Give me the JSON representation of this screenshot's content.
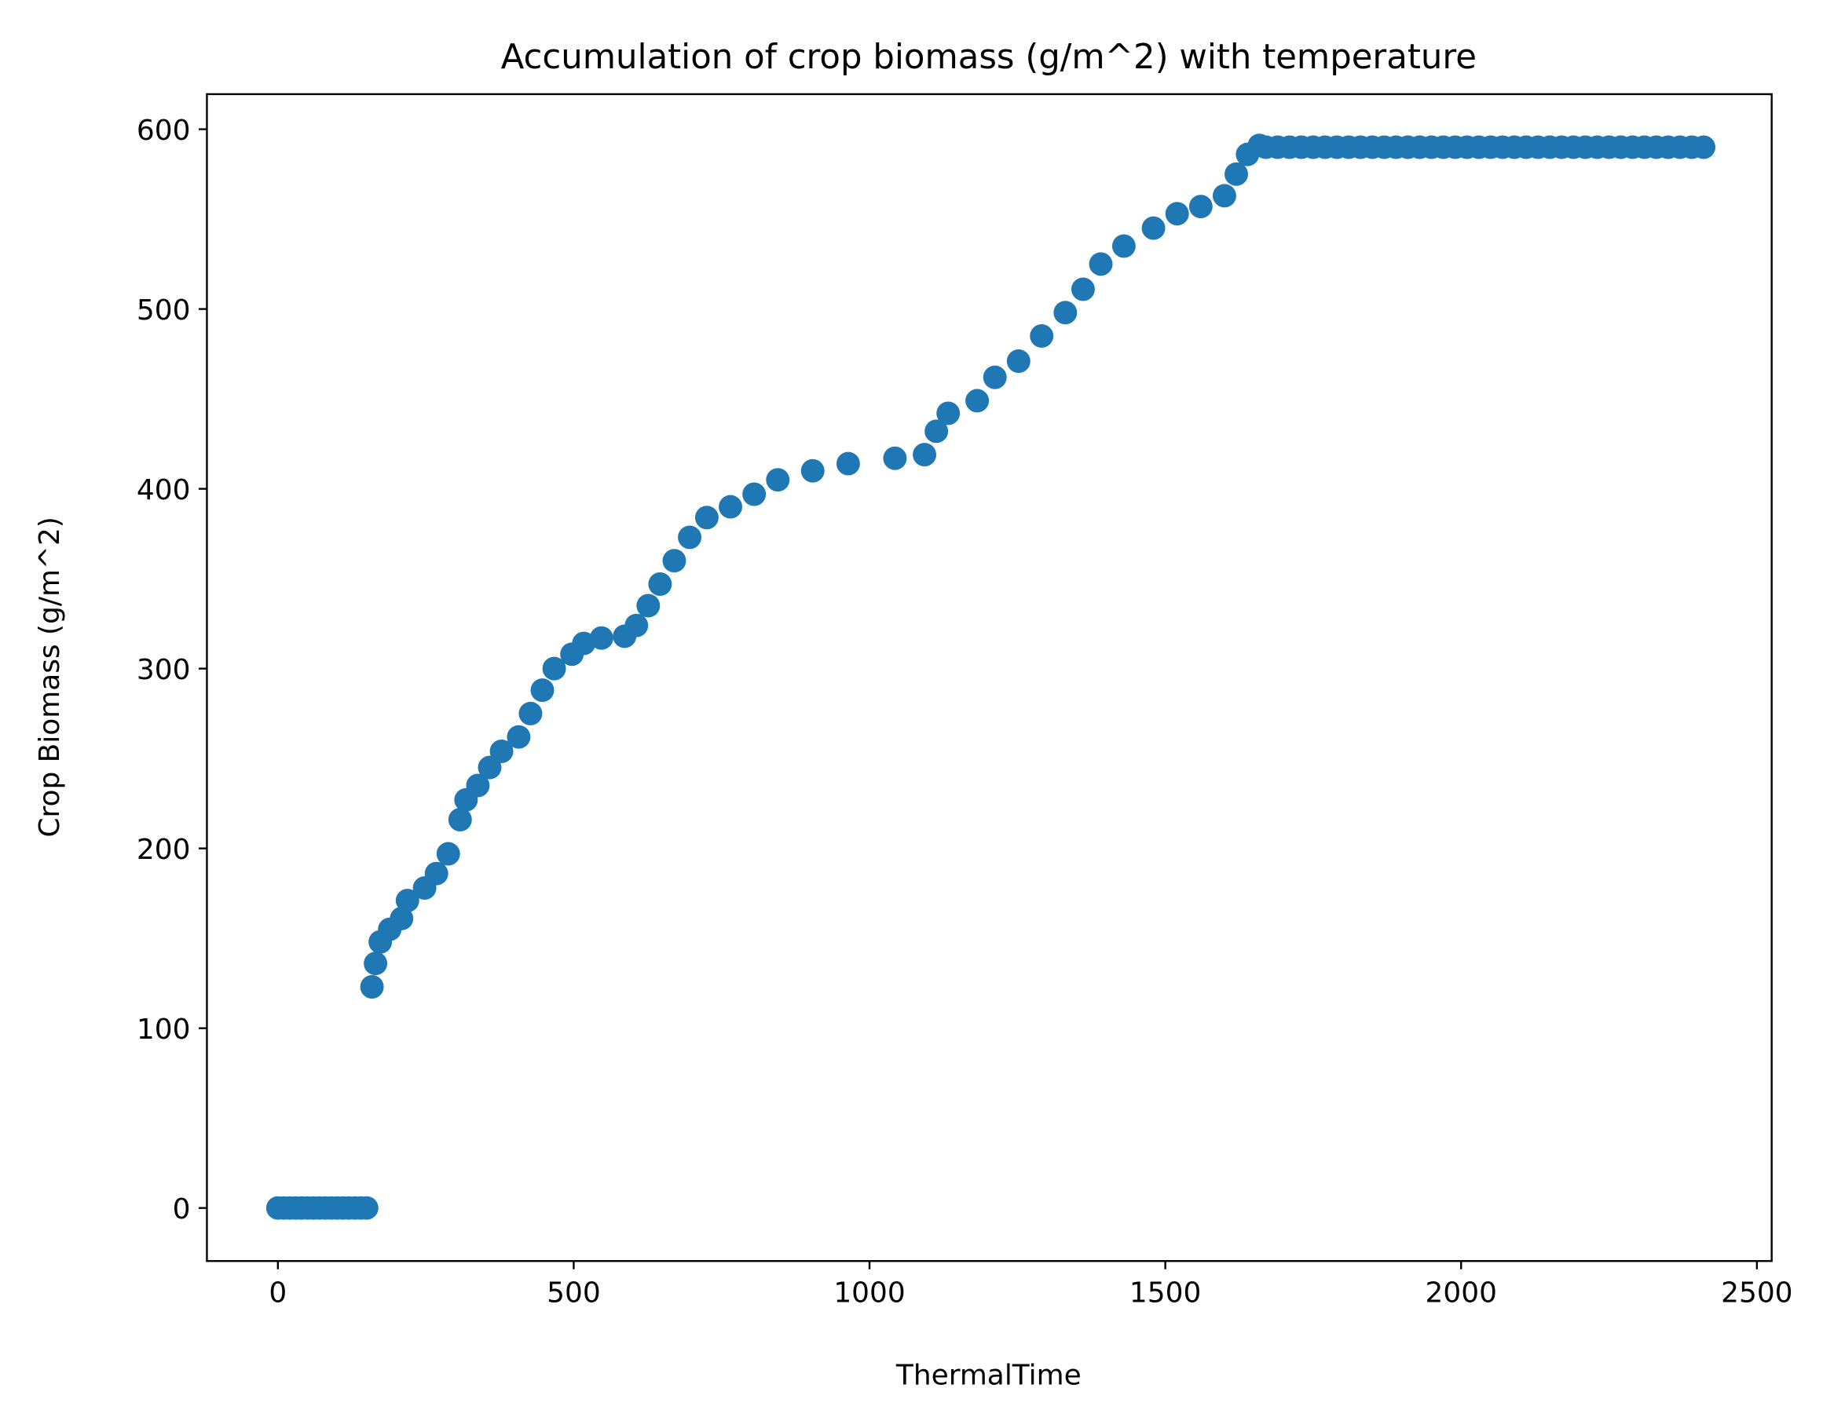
{
  "chart_data": {
    "type": "scatter",
    "title": "Accumulation of crop biomass (g/m^2) with temperature",
    "x_label": "ThermalTime",
    "y_label": "Crop Biomass (g/m^2)",
    "color": "#1f77b4",
    "x": [
      0,
      10,
      20,
      30,
      40,
      50,
      60,
      70,
      80,
      90,
      100,
      110,
      120,
      130,
      140,
      150,
      159,
      165,
      173,
      189,
      209,
      219,
      248,
      268,
      288,
      308,
      318,
      338,
      358,
      378,
      407,
      427,
      447,
      467,
      497,
      517,
      547,
      586,
      606,
      626,
      646,
      670,
      696,
      725,
      765,
      805,
      845,
      904,
      964,
      1043,
      1093,
      1113,
      1133,
      1182,
      1212,
      1252,
      1291,
      1331,
      1361,
      1391,
      1430,
      1480,
      1520,
      1560,
      1600,
      1620,
      1639,
      1659,
      1670,
      1690,
      1710,
      1730,
      1750,
      1770,
      1790,
      1810,
      1830,
      1850,
      1870,
      1890,
      1910,
      1930,
      1950,
      1970,
      1990,
      2010,
      2030,
      2050,
      2070,
      2090,
      2110,
      2130,
      2150,
      2170,
      2190,
      2210,
      2230,
      2250,
      2270,
      2290,
      2310,
      2330,
      2350,
      2370,
      2390,
      2410
    ],
    "values": [
      0,
      0,
      0,
      0,
      0,
      0,
      0,
      0,
      0,
      0,
      0,
      0,
      0,
      0,
      0,
      0,
      123,
      136,
      148,
      155,
      161,
      171,
      178,
      186,
      197,
      216,
      227,
      235,
      245,
      254,
      262,
      275,
      288,
      300,
      308,
      314,
      317,
      318,
      324,
      335,
      347,
      360,
      373,
      384,
      390,
      397,
      405,
      410,
      414,
      417,
      419,
      432,
      442,
      449,
      462,
      471,
      485,
      498,
      511,
      525,
      535,
      545,
      553,
      557,
      563,
      575,
      586,
      591,
      590,
      590,
      590,
      590,
      590,
      590,
      590,
      590,
      590,
      590,
      590,
      590,
      590,
      590,
      590,
      590,
      590,
      590,
      590,
      590,
      590,
      590,
      590,
      590,
      590,
      590,
      590,
      590,
      590,
      590,
      590,
      590,
      590,
      590,
      590,
      590,
      590,
      590
    ],
    "xlim": [
      -120,
      2525
    ],
    "ylim": [
      -29.5,
      619.5
    ],
    "xticks": [
      0,
      500,
      1000,
      1500,
      2000,
      2500
    ],
    "yticks": [
      0,
      100,
      200,
      300,
      400,
      500,
      600
    ]
  }
}
